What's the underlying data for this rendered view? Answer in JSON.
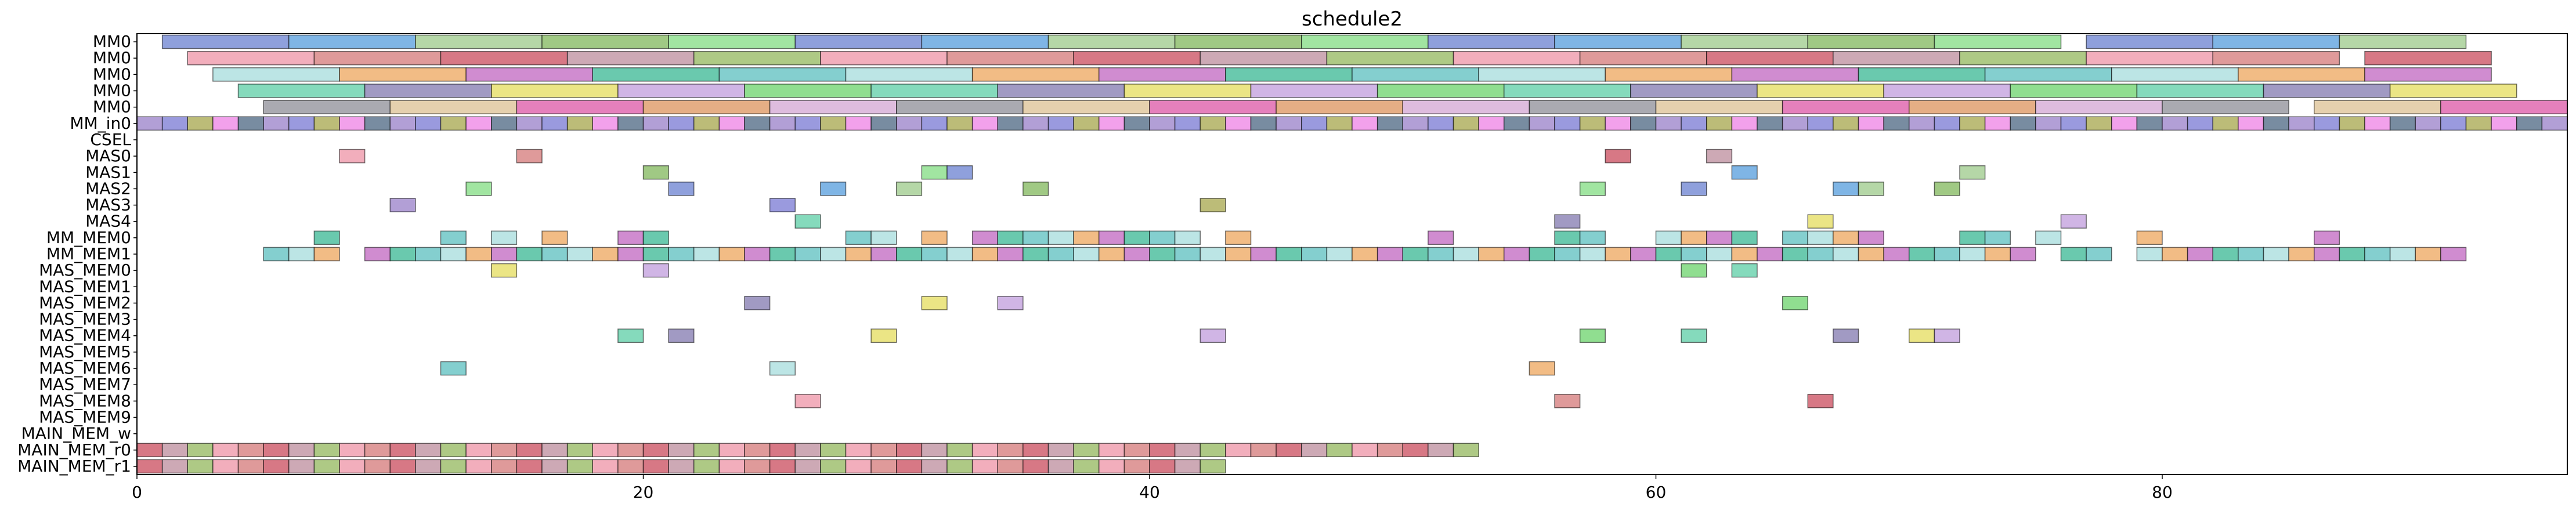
{
  "chart_data": {
    "type": "gantt",
    "title": "schedule2",
    "xlabel": "",
    "ylabel": "",
    "xlim": [
      0,
      96
    ],
    "x_ticks": [
      0,
      20,
      40,
      60,
      80
    ],
    "grid": false,
    "rows": [
      "MM0",
      "MM0",
      "MM0",
      "MM0",
      "MM0",
      "MM_in0",
      "CSEL",
      "MAS0",
      "MAS1",
      "MAS2",
      "MAS3",
      "MAS4",
      "MM_MEM0",
      "MM_MEM1",
      "MAS_MEM0",
      "MAS_MEM1",
      "MAS_MEM2",
      "MAS_MEM3",
      "MAS_MEM4",
      "MAS_MEM5",
      "MAS_MEM6",
      "MAS_MEM7",
      "MAS_MEM8",
      "MAS_MEM9",
      "MAIN_MEM_w",
      "MAIN_MEM_r0",
      "MAIN_MEM_r1"
    ],
    "row_segments": [
      {
        "starts": [
          1,
          6,
          11,
          16,
          21,
          26,
          31,
          36,
          41,
          46,
          51,
          56,
          61,
          66,
          71,
          77,
          82,
          87
        ],
        "duration": 5
      },
      {
        "starts": [
          2,
          7,
          12,
          17,
          22,
          27,
          32,
          37,
          42,
          47,
          52,
          57,
          62,
          67,
          72,
          77,
          82,
          88
        ],
        "duration": 5
      },
      {
        "starts": [
          3,
          8,
          13,
          18,
          23,
          28,
          33,
          38,
          43,
          48,
          53,
          58,
          63,
          68,
          73,
          78,
          83,
          88
        ],
        "duration": 5
      },
      {
        "starts": [
          4,
          9,
          14,
          19,
          24,
          29,
          34,
          39,
          44,
          49,
          54,
          59,
          64,
          69,
          74,
          79,
          84,
          89
        ],
        "duration": 5
      },
      {
        "starts": [
          5,
          10,
          15,
          20,
          25,
          30,
          35,
          40,
          45,
          50,
          55,
          60,
          65,
          70,
          75,
          80,
          86,
          91
        ],
        "duration": 5
      },
      {
        "starts": [
          0,
          1,
          2,
          3,
          4,
          5,
          6,
          7,
          8,
          9,
          10,
          11,
          12,
          13,
          14,
          15,
          16,
          17,
          18,
          19,
          20,
          21,
          22,
          23,
          24,
          25,
          26,
          27,
          28,
          29,
          30,
          31,
          32,
          33,
          34,
          35,
          36,
          37,
          38,
          39,
          40,
          41,
          42,
          43,
          44,
          45,
          46,
          47,
          48,
          49,
          50,
          51,
          52,
          53,
          54,
          55,
          56,
          57,
          58,
          59,
          60,
          61,
          62,
          63,
          64,
          65,
          66,
          67,
          68,
          69,
          70,
          71,
          72,
          73,
          74,
          75,
          76,
          77,
          78,
          79,
          80,
          81,
          82,
          83,
          84,
          85,
          86,
          87,
          88,
          89,
          90,
          91,
          92,
          93,
          94,
          95
        ],
        "duration": 1
      },
      {
        "starts": [],
        "duration": 1
      },
      {
        "starts": [
          8,
          15,
          58,
          62
        ],
        "duration": 1
      },
      {
        "starts": [
          20,
          31,
          32,
          63,
          72
        ],
        "duration": 1
      },
      {
        "starts": [
          13,
          21,
          27,
          30,
          35,
          57,
          61,
          67,
          68,
          71
        ],
        "duration": 1
      },
      {
        "starts": [
          10,
          25,
          42
        ],
        "duration": 1
      },
      {
        "starts": [
          26,
          56,
          66,
          76
        ],
        "duration": 1
      },
      {
        "starts": [
          7,
          12,
          14,
          16,
          19,
          20,
          28,
          29,
          31,
          33,
          34,
          35,
          36,
          37,
          38,
          39,
          40,
          41,
          43,
          51,
          56,
          57,
          60,
          61,
          62,
          63,
          65,
          66,
          67,
          68,
          72,
          73,
          75,
          79,
          86
        ],
        "duration": 1
      },
      {
        "starts": [
          5,
          6,
          7,
          9,
          10,
          11,
          12,
          13,
          14,
          15,
          16,
          17,
          18,
          19,
          20,
          21,
          22,
          23,
          24,
          25,
          26,
          27,
          28,
          29,
          30,
          31,
          32,
          33,
          34,
          35,
          36,
          37,
          38,
          39,
          40,
          41,
          42,
          43,
          44,
          45,
          46,
          47,
          48,
          49,
          50,
          51,
          52,
          53,
          54,
          55,
          56,
          57,
          58,
          59,
          60,
          61,
          62,
          63,
          64,
          65,
          66,
          67,
          68,
          69,
          70,
          71,
          72,
          73,
          74,
          76,
          77,
          79,
          80,
          81,
          82,
          83,
          84,
          85,
          86,
          87,
          88,
          89,
          90,
          91
        ],
        "duration": 1
      },
      {
        "starts": [
          14,
          20,
          61,
          63
        ],
        "duration": 1
      },
      {
        "starts": [],
        "duration": 1
      },
      {
        "starts": [
          24,
          31,
          34,
          65
        ],
        "duration": 1
      },
      {
        "starts": [],
        "duration": 1
      },
      {
        "starts": [
          19,
          21,
          29,
          42,
          57,
          61,
          67,
          70,
          71
        ],
        "duration": 1
      },
      {
        "starts": [],
        "duration": 1
      },
      {
        "starts": [
          12,
          25,
          55
        ],
        "duration": 1
      },
      {
        "starts": [],
        "duration": 1
      },
      {
        "starts": [
          26,
          56,
          66
        ],
        "duration": 1
      },
      {
        "starts": [],
        "duration": 1
      },
      {
        "starts": [],
        "duration": 1
      },
      {
        "starts": [
          0,
          1,
          2,
          3,
          4,
          5,
          6,
          7,
          8,
          9,
          10,
          11,
          12,
          13,
          14,
          15,
          16,
          17,
          18,
          19,
          20,
          21,
          22,
          23,
          24,
          25,
          26,
          27,
          28,
          29,
          30,
          31,
          32,
          33,
          34,
          35,
          36,
          37,
          38,
          39,
          40,
          41,
          42,
          43,
          44,
          45,
          46,
          47,
          48,
          49,
          50,
          51,
          52
        ],
        "duration": 1
      },
      {
        "starts": [
          0,
          1,
          2,
          3,
          4,
          5,
          6,
          7,
          8,
          9,
          10,
          11,
          12,
          13,
          14,
          15,
          16,
          17,
          18,
          19,
          20,
          21,
          22,
          23,
          24,
          25,
          26,
          27,
          28,
          29,
          30,
          31,
          32,
          33,
          34,
          35,
          36,
          37,
          38,
          39,
          40,
          41,
          42
        ],
        "duration": 1
      }
    ],
    "palette": [
      "#7b8fd6",
      "#c49aa8",
      "#f0b070",
      "#7dd87d",
      "#e06ab0",
      "#a58ecf",
      "#8fbf6f",
      "#d98888",
      "#6fc7c7",
      "#e8e070",
      "#9b9ba3",
      "#f090e8",
      "#68a8e0",
      "#a0c070",
      "#c878c8",
      "#70d4b0",
      "#e0a070",
      "#8888d8",
      "#90e090",
      "#d06070",
      "#b0e0e0",
      "#c8a8e0",
      "#e0c8a0",
      "#607890",
      "#a8d098",
      "#f0a0b0",
      "#50c0a0",
      "#9088b8",
      "#d8b0d8",
      "#b0b060"
    ]
  }
}
